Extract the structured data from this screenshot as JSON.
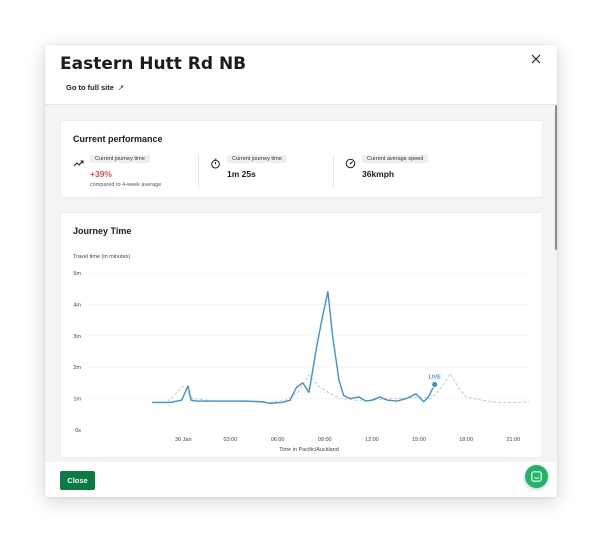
{
  "modal": {
    "title": "Eastern Hutt Rd NB",
    "link_label": "Go to full site",
    "link_arrow": "↗",
    "close_button_label": "Close"
  },
  "performance": {
    "title": "Current performance",
    "metrics": [
      {
        "label": "Current journey time",
        "value": "+39%",
        "sub": "compared to 4-week average",
        "icon": "trend-up-icon",
        "value_color": "#e0504a"
      },
      {
        "label": "Current journey time",
        "value": "1m 25s",
        "icon": "stopwatch-icon"
      },
      {
        "label": "Current average speed",
        "value": "36kmph",
        "icon": "speedometer-icon"
      }
    ]
  },
  "journey": {
    "title": "Journey Time"
  },
  "colors": {
    "accent_green": "#0c7a43",
    "chat_green": "#20b36a",
    "live_line": "#3d92cf",
    "typical_line": "#c8c8c8",
    "increase_red": "#e0504a"
  },
  "chart_data": {
    "type": "line",
    "ylabel": "Travel time (in minutes)",
    "xlabel": "Time in Pacific/Auckland",
    "y_ticks": [
      "0s",
      "1m",
      "2m",
      "3m",
      "4m",
      "5m"
    ],
    "ylim": [
      0,
      5
    ],
    "xlim": [
      -6,
      22
    ],
    "x_ticks": [
      {
        "label": "30 Jan",
        "x": 0
      },
      {
        "label": "03:00",
        "x": 3
      },
      {
        "label": "06:00",
        "x": 6
      },
      {
        "label": "09:00",
        "x": 9
      },
      {
        "label": "12:00",
        "x": 12
      },
      {
        "label": "15:00",
        "x": 15
      },
      {
        "label": "18:00",
        "x": 18
      },
      {
        "label": "21:00",
        "x": 21
      }
    ],
    "grid": "horizontal dashed",
    "live_marker": {
      "label": "LIVE",
      "x": 16.0,
      "y": 1.45
    },
    "series": [
      {
        "name": "",
        "style": "solid",
        "color": "#3d92cf",
        "points": [
          [
            -2.0,
            0.88
          ],
          [
            -0.8,
            0.88
          ],
          [
            -0.4,
            0.92
          ],
          [
            -0.1,
            0.95
          ],
          [
            0.3,
            1.4
          ],
          [
            0.5,
            0.95
          ],
          [
            0.8,
            0.92
          ],
          [
            1.5,
            0.92
          ],
          [
            3.0,
            0.92
          ],
          [
            4.0,
            0.92
          ],
          [
            5.0,
            0.9
          ],
          [
            5.5,
            0.85
          ],
          [
            6.3,
            0.88
          ],
          [
            6.8,
            0.95
          ],
          [
            7.2,
            1.35
          ],
          [
            7.6,
            1.5
          ],
          [
            8.0,
            1.2
          ],
          [
            8.5,
            2.7
          ],
          [
            8.9,
            3.7
          ],
          [
            9.2,
            4.4
          ],
          [
            9.5,
            3.0
          ],
          [
            9.9,
            1.6
          ],
          [
            10.2,
            1.1
          ],
          [
            10.6,
            1.0
          ],
          [
            11.2,
            1.05
          ],
          [
            11.6,
            0.92
          ],
          [
            12.0,
            0.95
          ],
          [
            12.5,
            1.05
          ],
          [
            13.0,
            0.95
          ],
          [
            13.6,
            0.92
          ],
          [
            14.2,
            1.0
          ],
          [
            14.8,
            1.15
          ],
          [
            15.3,
            0.9
          ],
          [
            15.6,
            1.05
          ],
          [
            16.0,
            1.45
          ]
        ]
      },
      {
        "name": "",
        "style": "dashed",
        "color": "#c8c8c8",
        "points": [
          [
            -1.0,
            0.9
          ],
          [
            0.0,
            1.4
          ],
          [
            0.6,
            1.0
          ],
          [
            2.0,
            0.92
          ],
          [
            4.0,
            0.9
          ],
          [
            5.5,
            0.88
          ],
          [
            6.5,
            0.95
          ],
          [
            7.3,
            1.2
          ],
          [
            8.0,
            1.75
          ],
          [
            8.6,
            1.4
          ],
          [
            9.2,
            1.2
          ],
          [
            10.0,
            1.0
          ],
          [
            11.0,
            0.95
          ],
          [
            12.0,
            0.95
          ],
          [
            13.0,
            1.0
          ],
          [
            14.0,
            1.0
          ],
          [
            15.0,
            1.05
          ],
          [
            15.8,
            1.0
          ],
          [
            16.5,
            1.4
          ],
          [
            17.0,
            1.8
          ],
          [
            17.5,
            1.35
          ],
          [
            18.0,
            1.05
          ],
          [
            19.0,
            0.95
          ],
          [
            20.0,
            0.88
          ],
          [
            21.5,
            0.88
          ],
          [
            22.0,
            0.9
          ]
        ]
      }
    ]
  }
}
